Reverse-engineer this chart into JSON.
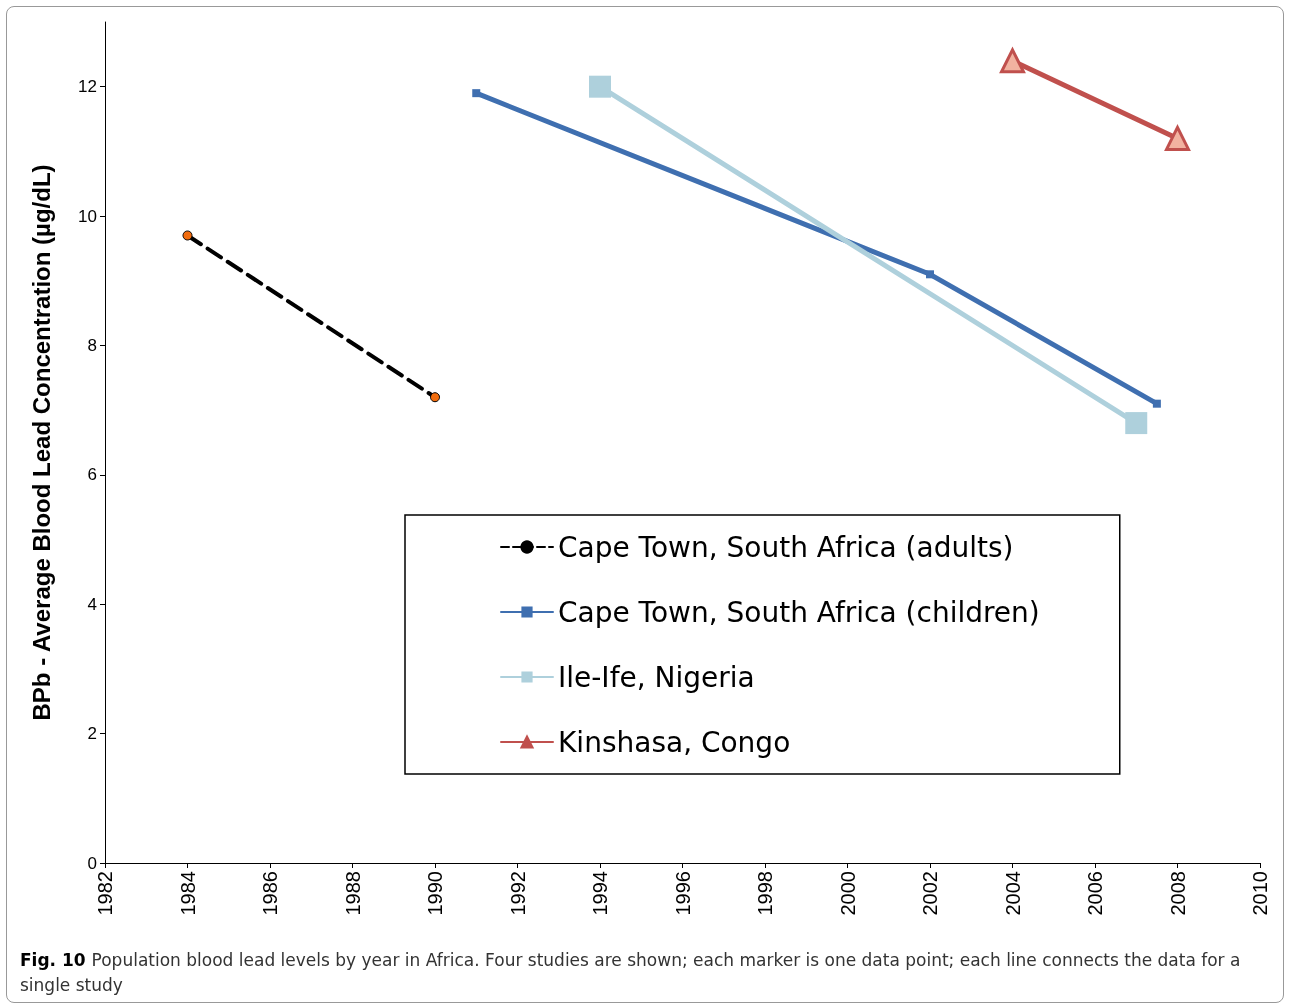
{
  "chart_data": {
    "type": "line",
    "ylabel": "BPb - Average Blood Lead Concentration (µg/dL)",
    "xlim": [
      1982,
      2010
    ],
    "xticks": [
      1982,
      1984,
      1986,
      1988,
      1990,
      1992,
      1994,
      1996,
      1998,
      2000,
      2002,
      2004,
      2006,
      2008,
      2010
    ],
    "ylim": [
      0,
      13
    ],
    "yticks": [
      0,
      2,
      4,
      6,
      8,
      10,
      12
    ],
    "grid": false,
    "legend": "bottom",
    "series": [
      {
        "name": "Cape Town, South Africa (adults)",
        "color": "#000000",
        "colors": [
          "#f26c0d",
          "#f26c0d"
        ],
        "marker": "circle",
        "line_style": "dashed",
        "x": [
          1984,
          1990
        ],
        "values": [
          9.7,
          7.2
        ]
      },
      {
        "name": "Cape Town, South Africa (children)",
        "color": "#3f6fb0",
        "marker": "square",
        "line_style": "solid",
        "x": [
          1991,
          2002,
          2007.5
        ],
        "values": [
          11.9,
          9.1,
          7.1
        ]
      },
      {
        "name": "Ile-Ife, Nigeria",
        "color": "#aed0dc",
        "marker": "square",
        "line_style": "solid",
        "x": [
          1994,
          2007
        ],
        "values": [
          12.0,
          6.8
        ]
      },
      {
        "name": "Kinshasa, Congo",
        "color": "#c0504d",
        "colors": [
          "#f2b2a0",
          "#f2b2a0"
        ],
        "marker": "triangle",
        "line_style": "solid",
        "x": [
          2004,
          2008
        ],
        "values": [
          12.4,
          11.2
        ]
      }
    ],
    "annotations": [
      "Fig. 10",
      "Population blood lead levels by year in Africa. Four studies are shown; each marker is one data point; each line connects the data for a single study"
    ]
  }
}
